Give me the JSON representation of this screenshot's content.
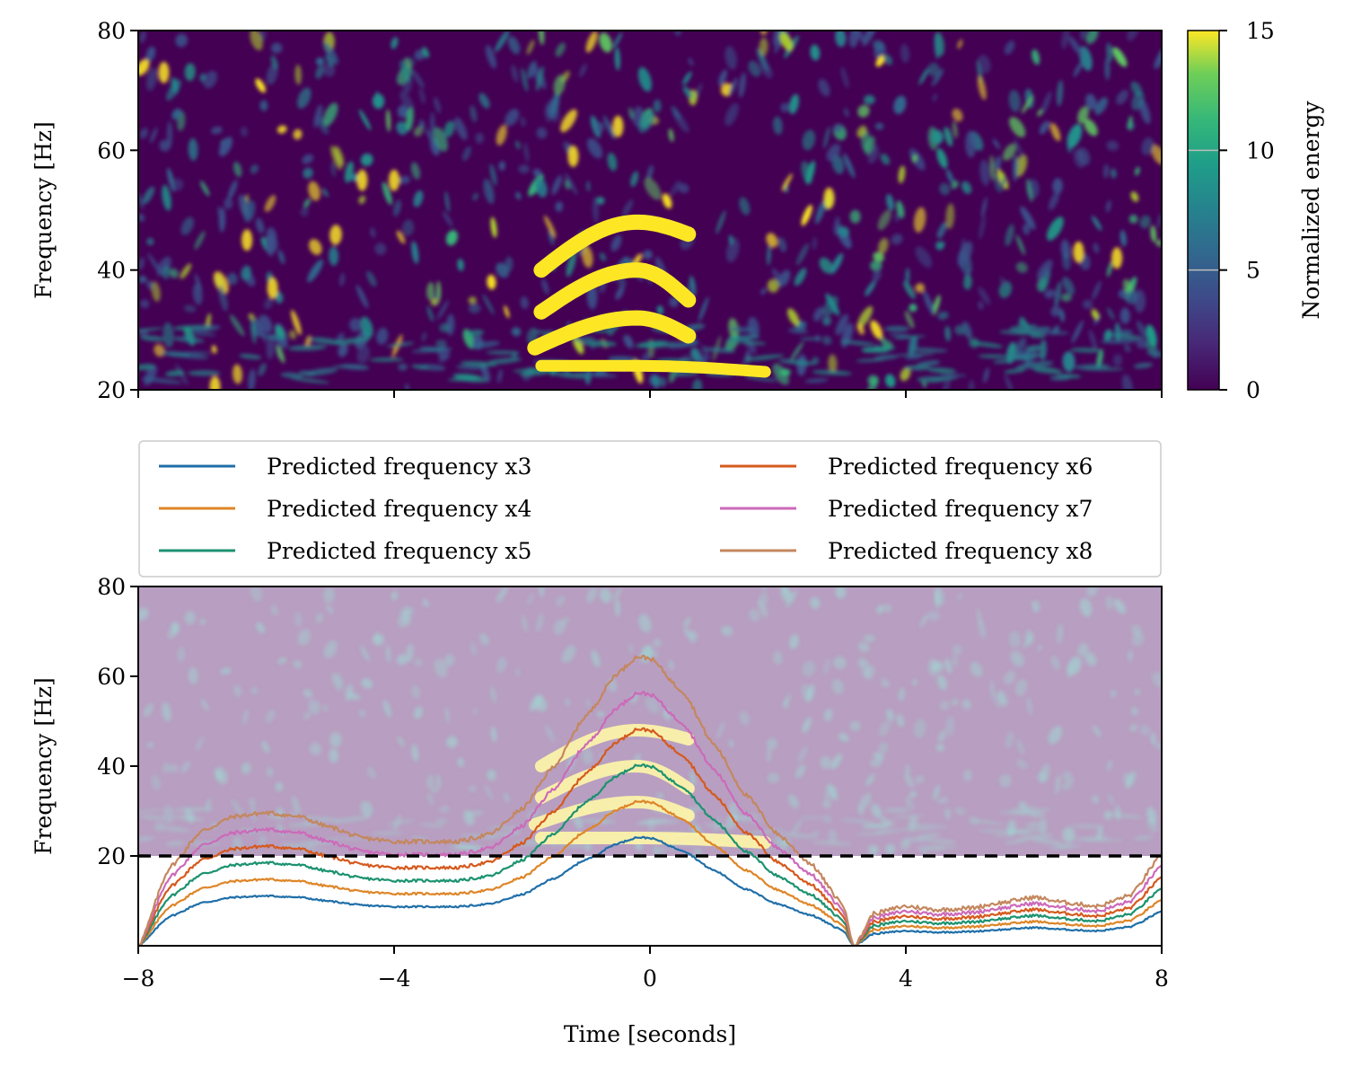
{
  "chart_data": [
    {
      "type": "heatmap",
      "panel": "top",
      "ylabel": "Frequency [Hz]",
      "xlim": [
        -8,
        8
      ],
      "ylim": [
        20,
        80
      ],
      "yticks": [
        20,
        40,
        60,
        80
      ],
      "ytick_labels": [
        "20",
        "40",
        "60",
        "80"
      ],
      "xticks": [
        -8,
        -4,
        0,
        4,
        8
      ],
      "xtick_labels": [
        "",
        "",
        "",
        "",
        ""
      ],
      "colormap": "viridis",
      "colorbar": {
        "label": "Normalized energy",
        "range": [
          0,
          15
        ],
        "ticks": [
          0,
          5,
          10,
          15
        ],
        "tick_labels": [
          "0",
          "5",
          "10",
          "15"
        ]
      },
      "bright_features": [
        {
          "t_start": -1.7,
          "t_end": 0.6,
          "f_start": 40,
          "f_peak": 48,
          "f_end": 46
        },
        {
          "t_start": -1.7,
          "t_end": 0.6,
          "f_start": 33,
          "f_peak": 40,
          "f_end": 35
        },
        {
          "t_start": -1.8,
          "t_end": 0.6,
          "f_start": 27,
          "f_peak": 32,
          "f_end": 29
        },
        {
          "t_start": -1.7,
          "t_end": 1.8,
          "f_start": 24,
          "f_peak": 24,
          "f_end": 23
        }
      ]
    },
    {
      "type": "line",
      "panel": "bottom",
      "xlabel": "Time [seconds]",
      "ylabel": "Frequency [Hz]",
      "xlim": [
        -8,
        8
      ],
      "ylim": [
        0,
        80
      ],
      "xticks": [
        -8,
        -4,
        0,
        4,
        8
      ],
      "xtick_labels": [
        "−8",
        "−4",
        "0",
        "4",
        "8"
      ],
      "yticks": [
        20,
        40,
        60,
        80
      ],
      "ytick_labels": [
        "20",
        "40",
        "60",
        "80"
      ],
      "background": "faded copy of top spectrogram",
      "threshold": {
        "y": 20,
        "style": "dashed",
        "color": "#000000"
      },
      "legend": {
        "placement": "above plot, two columns",
        "ncol": 2
      },
      "x": [
        -8,
        -7.5,
        -7,
        -6.5,
        -6,
        -5.5,
        -5,
        -4.5,
        -4,
        -3.5,
        -3,
        -2.5,
        -2,
        -1.5,
        -1,
        -0.5,
        -0.2,
        0,
        0.5,
        1,
        1.5,
        2,
        2.5,
        3,
        3.2,
        3.5,
        4,
        4.5,
        5,
        5.5,
        6,
        6.5,
        7,
        7.5,
        8
      ],
      "base_fundamental": [
        0,
        2.2,
        3.2,
        3.6,
        3.7,
        3.6,
        3.3,
        3.0,
        2.9,
        2.9,
        2.9,
        3.1,
        3.8,
        5.0,
        6.4,
        7.6,
        8.05,
        8.0,
        7.1,
        5.6,
        4.2,
        3.1,
        2.3,
        1.2,
        0,
        0.9,
        1.1,
        1.0,
        1.05,
        1.2,
        1.35,
        1.2,
        1.1,
        1.4,
        2.5
      ],
      "series": [
        {
          "name": "Predicted frequency x3",
          "multiplier": 3,
          "color": "#1f6fa8"
        },
        {
          "name": "Predicted frequency x4",
          "multiplier": 4,
          "color": "#de8527"
        },
        {
          "name": "Predicted frequency x5",
          "multiplier": 5,
          "color": "#1c9270"
        },
        {
          "name": "Predicted frequency x6",
          "multiplier": 6,
          "color": "#d55a1d"
        },
        {
          "name": "Predicted frequency x7",
          "multiplier": 7,
          "color": "#cc6ab9"
        },
        {
          "name": "Predicted frequency x8",
          "multiplier": 8,
          "color": "#c4875e"
        }
      ]
    }
  ]
}
